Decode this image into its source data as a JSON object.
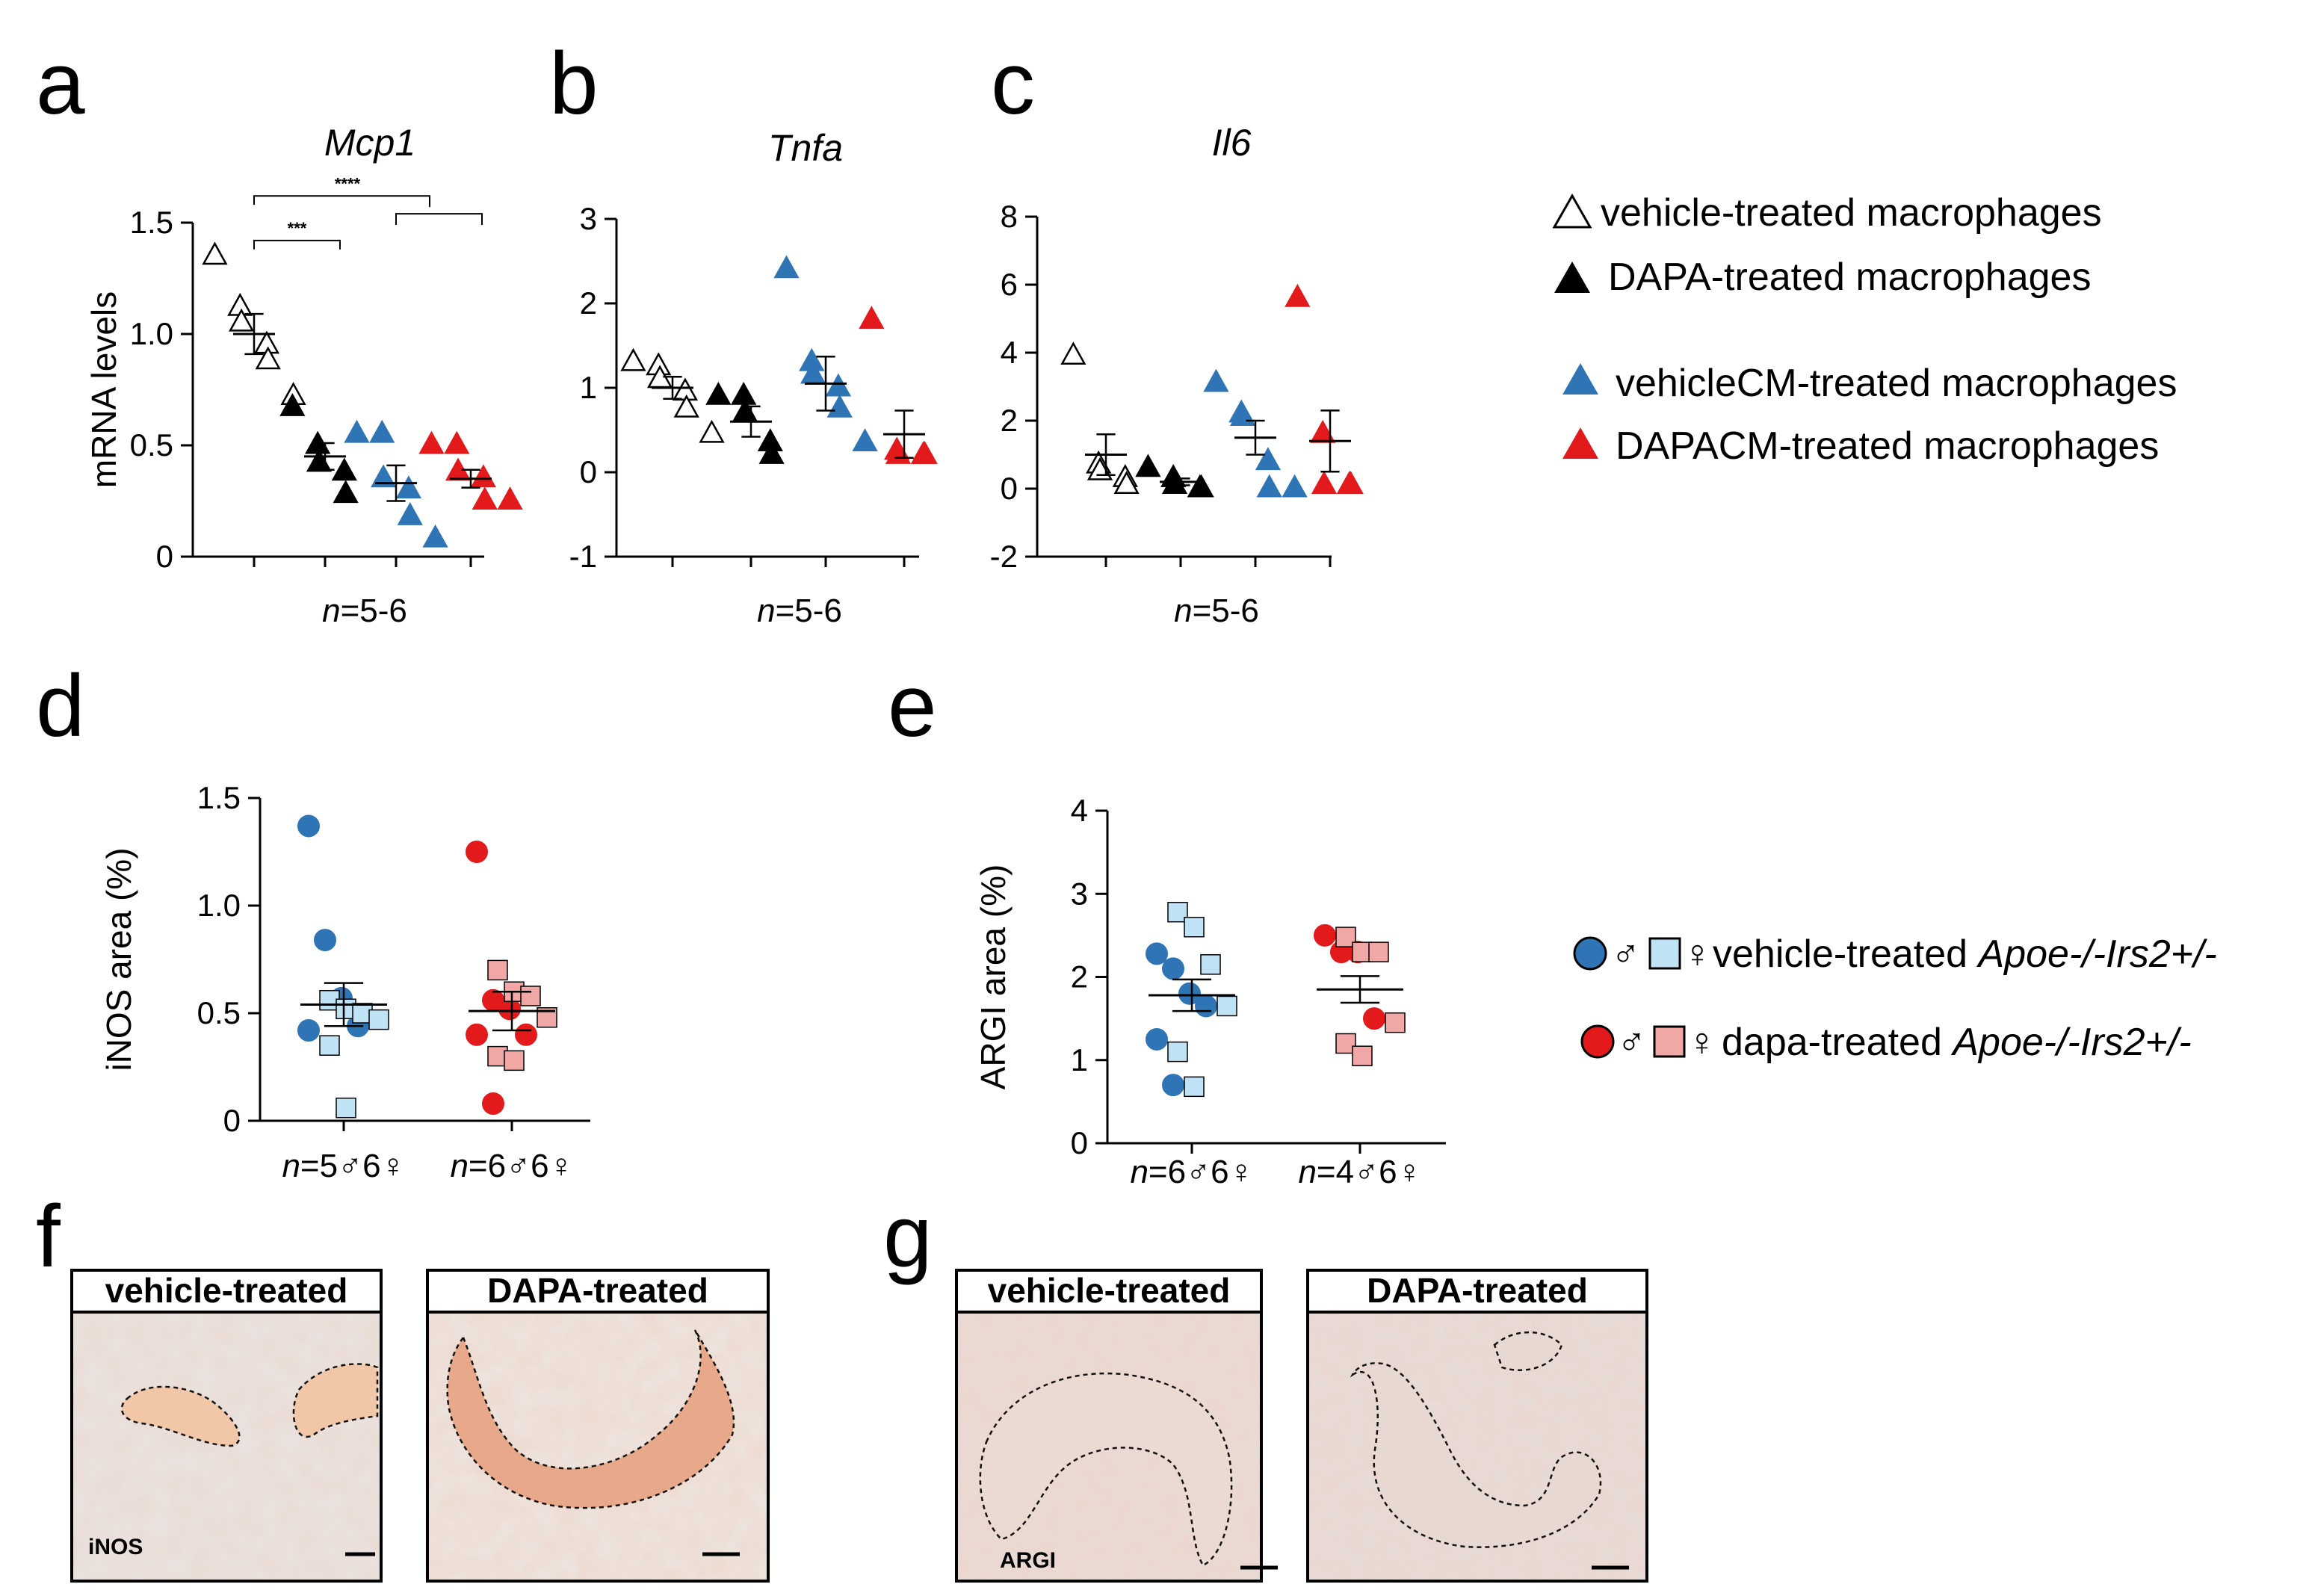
{
  "panels": {
    "a": "a",
    "b": "b",
    "c": "c",
    "d": "d",
    "e": "e",
    "f": "f",
    "g": "g"
  },
  "colors": {
    "vehicle": "#ffffff",
    "dapa": "#000000",
    "vehicleCM": "#2f75b5",
    "dapaCM": "#e31a1c",
    "male_vehicle": "#2f75b5",
    "female_vehicle": "#bfe3f5",
    "male_dapa": "#e31a1c",
    "female_dapa": "#f2a7a7"
  },
  "legend_top": {
    "vehicle": "vehicle-treated macrophages",
    "dapa": "DAPA-treated macrophages",
    "vehicleCM": "vehicleCM-treated macrophages",
    "dapaCM": "DAPACM-treated macrophages"
  },
  "legend_bottom": {
    "vehicle_prefix": "vehicle-treated ",
    "vehicle_genotype": "Apoe-/-Irs2+/-",
    "dapa_prefix": "dapa-treated ",
    "dapa_genotype": "Apoe-/-Irs2+/-",
    "male_symbol": "♂",
    "female_symbol": "♀"
  },
  "chart_data": [
    {
      "id": "a",
      "type": "scatter",
      "title": "Mcp1",
      "ylabel": "mRNA levels",
      "ylim": [
        0,
        1.5
      ],
      "yticks": [
        "0",
        "0.5",
        "1.0",
        "1.5"
      ],
      "n_label": {
        "n": "n",
        "rest": "=5-6"
      },
      "significance": [
        "***",
        "****"
      ],
      "groups": [
        {
          "name": "vehicle-treated macrophages",
          "values": [
            1.35,
            1.12,
            1.05,
            0.95,
            0.88,
            0.72
          ],
          "mean": 1.0,
          "sem": 0.09
        },
        {
          "name": "DAPA-treated macrophages",
          "values": [
            0.67,
            0.5,
            0.42,
            0.38,
            0.28
          ],
          "mean": 0.45,
          "sem": 0.06
        },
        {
          "name": "vehicleCM-treated macrophages",
          "values": [
            0.55,
            0.55,
            0.35,
            0.3,
            0.18,
            0.08
          ],
          "mean": 0.33,
          "sem": 0.08
        },
        {
          "name": "DAPACM-treated macrophages",
          "values": [
            0.5,
            0.5,
            0.38,
            0.35,
            0.25,
            0.25
          ],
          "mean": 0.35,
          "sem": 0.04
        }
      ]
    },
    {
      "id": "b",
      "type": "scatter",
      "title": "Tnfa",
      "ylabel": "",
      "ylim": [
        -1,
        3
      ],
      "yticks": [
        "-1",
        "0",
        "1",
        "2",
        "3"
      ],
      "n_label": {
        "n": "n",
        "rest": "=5-6"
      },
      "groups": [
        {
          "name": "vehicle-treated macrophages",
          "values": [
            1.3,
            1.25,
            1.1,
            0.95,
            0.75,
            0.45
          ],
          "mean": 1.0,
          "sem": 0.13
        },
        {
          "name": "DAPA-treated macrophages",
          "values": [
            0.9,
            0.9,
            0.7,
            0.35,
            0.2
          ],
          "mean": 0.6,
          "sem": 0.18
        },
        {
          "name": "vehicleCM-treated macrophages",
          "values": [
            2.4,
            1.3,
            1.15,
            1.0,
            0.75,
            0.35
          ],
          "mean": 1.05,
          "sem": 0.32
        },
        {
          "name": "DAPACM-treated macrophages",
          "values": [
            1.8,
            0.25,
            0.2,
            0.2,
            0.2
          ],
          "mean": 0.45,
          "sem": 0.28
        }
      ]
    },
    {
      "id": "c",
      "type": "scatter",
      "title": "Il6",
      "ylabel": "",
      "ylim": [
        -2,
        8
      ],
      "yticks": [
        "-2",
        "0",
        "2",
        "4",
        "6",
        "8"
      ],
      "n_label": {
        "n": "n",
        "rest": "=5-6"
      },
      "groups": [
        {
          "name": "vehicle-treated macrophages",
          "values": [
            3.9,
            0.7,
            0.5,
            0.3,
            0.1
          ],
          "mean": 1.0,
          "sem": 0.6
        },
        {
          "name": "DAPA-treated macrophages",
          "values": [
            0.6,
            0.3,
            0.1,
            0.0,
            0.0
          ],
          "mean": 0.2,
          "sem": 0.1
        },
        {
          "name": "vehicleCM-treated macrophages",
          "values": [
            3.1,
            2.2,
            2.1,
            0.8,
            0.0,
            0.0
          ],
          "mean": 1.5,
          "sem": 0.5
        },
        {
          "name": "DAPACM-treated macrophages",
          "values": [
            5.6,
            1.6,
            0.1,
            0.1,
            0.1
          ],
          "mean": 1.4,
          "sem": 0.9
        }
      ]
    },
    {
      "id": "d",
      "type": "scatter",
      "title": "",
      "ylabel": "iNOS area (%)",
      "ylim": [
        0,
        1.5
      ],
      "yticks": [
        "0",
        "0.5",
        "1.0",
        "1.5"
      ],
      "groups": [
        {
          "name": "vehicle-treated Apoe-/-Irs2+/-",
          "n_label": {
            "n": "n",
            "rest": "=5♂6♀"
          },
          "mean": 0.54,
          "sem": 0.1,
          "points": [
            {
              "sex": "male",
              "value": 1.37
            },
            {
              "sex": "male",
              "value": 0.84
            },
            {
              "sex": "male",
              "value": 0.57
            },
            {
              "sex": "male",
              "value": 0.44
            },
            {
              "sex": "male",
              "value": 0.42
            },
            {
              "sex": "female",
              "value": 0.56
            },
            {
              "sex": "female",
              "value": 0.52
            },
            {
              "sex": "female",
              "value": 0.5
            },
            {
              "sex": "female",
              "value": 0.47
            },
            {
              "sex": "female",
              "value": 0.35
            },
            {
              "sex": "female",
              "value": 0.06
            }
          ]
        },
        {
          "name": "dapa-treated Apoe-/-Irs2+/-",
          "n_label": {
            "n": "n",
            "rest": "=6♂6♀"
          },
          "mean": 0.51,
          "sem": 0.09,
          "points": [
            {
              "sex": "male",
              "value": 1.25
            },
            {
              "sex": "male",
              "value": 0.56
            },
            {
              "sex": "male",
              "value": 0.52
            },
            {
              "sex": "male",
              "value": 0.4
            },
            {
              "sex": "male",
              "value": 0.4
            },
            {
              "sex": "male",
              "value": 0.08
            },
            {
              "sex": "female",
              "value": 0.7
            },
            {
              "sex": "female",
              "value": 0.6
            },
            {
              "sex": "female",
              "value": 0.58
            },
            {
              "sex": "female",
              "value": 0.48
            },
            {
              "sex": "female",
              "value": 0.3
            },
            {
              "sex": "female",
              "value": 0.28
            }
          ]
        }
      ]
    },
    {
      "id": "e",
      "type": "scatter",
      "title": "",
      "ylabel": "ARGI area (%)",
      "ylim": [
        0,
        4
      ],
      "yticks": [
        "0",
        "1",
        "2",
        "3",
        "4"
      ],
      "groups": [
        {
          "name": "vehicle-treated Apoe-/-Irs2+/-",
          "n_label": {
            "n": "n",
            "rest": "=6♂6♀"
          },
          "mean": 1.78,
          "sem": 0.19,
          "points": [
            {
              "sex": "male",
              "value": 2.28
            },
            {
              "sex": "male",
              "value": 2.1
            },
            {
              "sex": "male",
              "value": 1.8
            },
            {
              "sex": "male",
              "value": 1.65
            },
            {
              "sex": "male",
              "value": 1.25
            },
            {
              "sex": "male",
              "value": 0.7
            },
            {
              "sex": "female",
              "value": 2.78
            },
            {
              "sex": "female",
              "value": 2.6
            },
            {
              "sex": "female",
              "value": 2.15
            },
            {
              "sex": "female",
              "value": 1.65
            },
            {
              "sex": "female",
              "value": 1.1
            },
            {
              "sex": "female",
              "value": 0.68
            }
          ]
        },
        {
          "name": "dapa-treated Apoe-/-Irs2+/-",
          "n_label": {
            "n": "n",
            "rest": "=4♂6♀"
          },
          "mean": 1.85,
          "sem": 0.16,
          "points": [
            {
              "sex": "male",
              "value": 2.5
            },
            {
              "sex": "male",
              "value": 2.3
            },
            {
              "sex": "male",
              "value": 2.3
            },
            {
              "sex": "male",
              "value": 1.5
            },
            {
              "sex": "female",
              "value": 2.48
            },
            {
              "sex": "female",
              "value": 2.3
            },
            {
              "sex": "female",
              "value": 2.3
            },
            {
              "sex": "female",
              "value": 1.45
            },
            {
              "sex": "female",
              "value": 1.2
            },
            {
              "sex": "female",
              "value": 1.05
            }
          ]
        }
      ]
    }
  ],
  "micrographs": {
    "f": {
      "left_title": "vehicle-treated",
      "right_title": "DAPA-treated",
      "stain": "iNOS"
    },
    "g": {
      "left_title": "vehicle-treated",
      "right_title": "DAPA-treated",
      "stain": "ARGI"
    }
  }
}
